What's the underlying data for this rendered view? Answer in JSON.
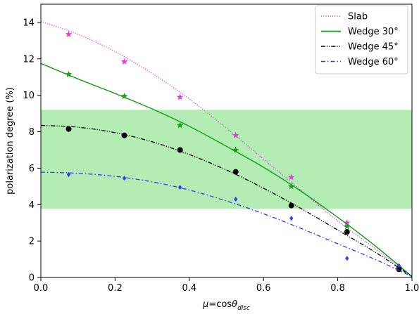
{
  "chart_data": {
    "type": "line",
    "xlabel_mu": "μ",
    "xlabel_eq": "=cos",
    "xlabel_theta": "θ",
    "xlabel_sub": "disc",
    "ylabel": "polarization degree (%)",
    "xlim": [
      0.0,
      1.0
    ],
    "ylim": [
      0,
      15
    ],
    "xticks": [
      "0.0",
      "0.2",
      "0.4",
      "0.6",
      "0.8",
      "1.0"
    ],
    "yticks": [
      "0",
      "2",
      "4",
      "6",
      "8",
      "10",
      "12",
      "14"
    ],
    "band": {
      "y0": 3.78,
      "y1": 9.2,
      "color": "#b3edb3"
    },
    "legend_position": "upper right",
    "series": [
      {
        "name": "Slab",
        "color": "#dd44dd",
        "linestyle": "dotted",
        "marker": "star",
        "curve": [
          [
            0.0,
            14.05
          ],
          [
            0.1,
            13.35
          ],
          [
            0.2,
            12.4
          ],
          [
            0.3,
            11.2
          ],
          [
            0.4,
            9.8
          ],
          [
            0.5,
            8.2
          ],
          [
            0.6,
            6.5
          ],
          [
            0.7,
            4.8
          ],
          [
            0.8,
            3.1
          ],
          [
            0.9,
            1.6
          ],
          [
            1.0,
            0.05
          ]
        ],
        "points": [
          [
            0.075,
            13.35
          ],
          [
            0.225,
            11.85
          ],
          [
            0.375,
            9.9
          ],
          [
            0.525,
            7.8
          ],
          [
            0.675,
            5.5
          ],
          [
            0.825,
            3.0
          ],
          [
            0.965,
            0.55
          ]
        ]
      },
      {
        "name": "Wedge 30°",
        "color": "#1e9e1e",
        "linestyle": "solid",
        "marker": "star",
        "curve": [
          [
            0.0,
            11.75
          ],
          [
            0.1,
            10.9
          ],
          [
            0.2,
            10.1
          ],
          [
            0.3,
            9.25
          ],
          [
            0.4,
            8.3
          ],
          [
            0.5,
            7.2
          ],
          [
            0.6,
            6.05
          ],
          [
            0.7,
            4.75
          ],
          [
            0.8,
            3.3
          ],
          [
            0.9,
            1.75
          ],
          [
            1.0,
            0.05
          ]
        ],
        "points": [
          [
            0.075,
            11.15
          ],
          [
            0.225,
            9.95
          ],
          [
            0.375,
            8.35
          ],
          [
            0.525,
            7.0
          ],
          [
            0.675,
            5.0
          ],
          [
            0.825,
            2.8
          ],
          [
            0.965,
            0.5
          ]
        ]
      },
      {
        "name": "Wedge 45°",
        "color": "#000000",
        "linestyle": "dashdotdot",
        "marker": "circle",
        "curve": [
          [
            0.0,
            8.35
          ],
          [
            0.1,
            8.25
          ],
          [
            0.2,
            7.95
          ],
          [
            0.3,
            7.45
          ],
          [
            0.4,
            6.75
          ],
          [
            0.5,
            5.9
          ],
          [
            0.6,
            4.9
          ],
          [
            0.7,
            3.8
          ],
          [
            0.8,
            2.6
          ],
          [
            0.9,
            1.4
          ],
          [
            1.0,
            0.05
          ]
        ],
        "points": [
          [
            0.075,
            8.15
          ],
          [
            0.225,
            7.8
          ],
          [
            0.375,
            7.0
          ],
          [
            0.525,
            5.8
          ],
          [
            0.675,
            3.95
          ],
          [
            0.825,
            2.5
          ],
          [
            0.965,
            0.45
          ]
        ]
      },
      {
        "name": "Wedge 60°",
        "color": "#2b3df5",
        "linestyle": "dashdot",
        "marker": "diamond",
        "curve": [
          [
            0.0,
            5.78
          ],
          [
            0.1,
            5.72
          ],
          [
            0.2,
            5.55
          ],
          [
            0.3,
            5.25
          ],
          [
            0.4,
            4.8
          ],
          [
            0.5,
            4.2
          ],
          [
            0.6,
            3.5
          ],
          [
            0.7,
            2.7
          ],
          [
            0.8,
            1.85
          ],
          [
            0.9,
            1.0
          ],
          [
            1.0,
            0.05
          ]
        ],
        "points": [
          [
            0.075,
            5.65
          ],
          [
            0.225,
            5.45
          ],
          [
            0.375,
            4.95
          ],
          [
            0.525,
            4.3
          ],
          [
            0.675,
            3.25
          ],
          [
            0.825,
            1.05
          ],
          [
            0.965,
            0.65
          ]
        ]
      }
    ]
  }
}
